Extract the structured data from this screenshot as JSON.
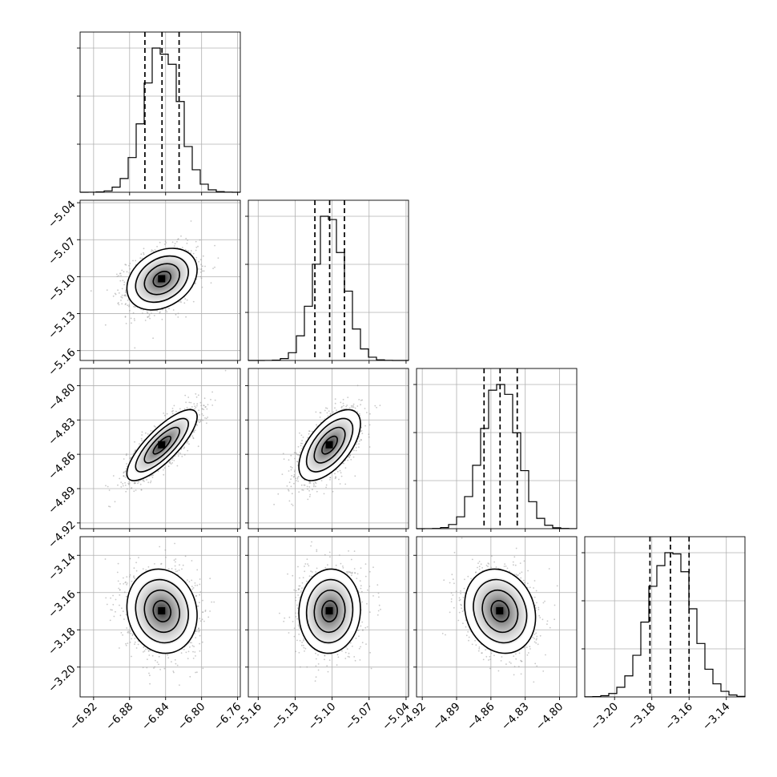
{
  "chart_data": {
    "type": "corner",
    "parameters": [
      {
        "index": 0,
        "mean": -6.844,
        "std": 0.0195,
        "range": [
          -6.935,
          -6.757
        ],
        "ticks": [
          -6.92,
          -6.88,
          -6.84,
          -6.8,
          -6.76
        ],
        "tick_labels": [
          "−6.92",
          "−6.88",
          "−6.84",
          "−6.80",
          "−6.76"
        ],
        "quantiles": [
          -6.863,
          -6.844,
          -6.825
        ]
      },
      {
        "index": 1,
        "mean": -5.102,
        "std": 0.0125,
        "range": [
          -5.168,
          -5.038
        ],
        "ticks": [
          -5.16,
          -5.13,
          -5.1,
          -5.07,
          -5.04
        ],
        "tick_labels": [
          "−5.16",
          "−5.13",
          "−5.10",
          "−5.07",
          "−5.04"
        ],
        "quantiles": [
          -5.114,
          -5.102,
          -5.09
        ]
      },
      {
        "index": 2,
        "mean": -4.852,
        "std": 0.0155,
        "range": [
          -4.925,
          -4.785
        ],
        "ticks": [
          -4.92,
          -4.89,
          -4.86,
          -4.83,
          -4.8
        ],
        "tick_labels": [
          "−4.92",
          "−4.89",
          "−4.86",
          "−4.83",
          "−4.80"
        ],
        "quantiles": [
          -4.866,
          -4.852,
          -4.837
        ]
      },
      {
        "index": 3,
        "mean": -3.17,
        "std": 0.0113,
        "range": [
          -3.216,
          -3.13
        ],
        "ticks": [
          -3.2,
          -3.18,
          -3.16,
          -3.14
        ],
        "tick_labels": [
          "−3.20",
          "−3.18",
          "−3.16",
          "−3.14"
        ],
        "quantiles": [
          -3.181,
          -3.17,
          -3.16
        ]
      }
    ],
    "correlations": {
      "0-1": 0.3,
      "0-2": 0.8,
      "1-2": 0.6,
      "0-3": -0.1,
      "1-3": 0.05,
      "2-3": -0.15
    },
    "contour_levels_sigma": [
      0.5,
      1.0,
      1.5,
      2.0
    ],
    "grid": true,
    "hist_bins": 20,
    "point_color": "#9a9a9a",
    "line_color": "#000000"
  }
}
